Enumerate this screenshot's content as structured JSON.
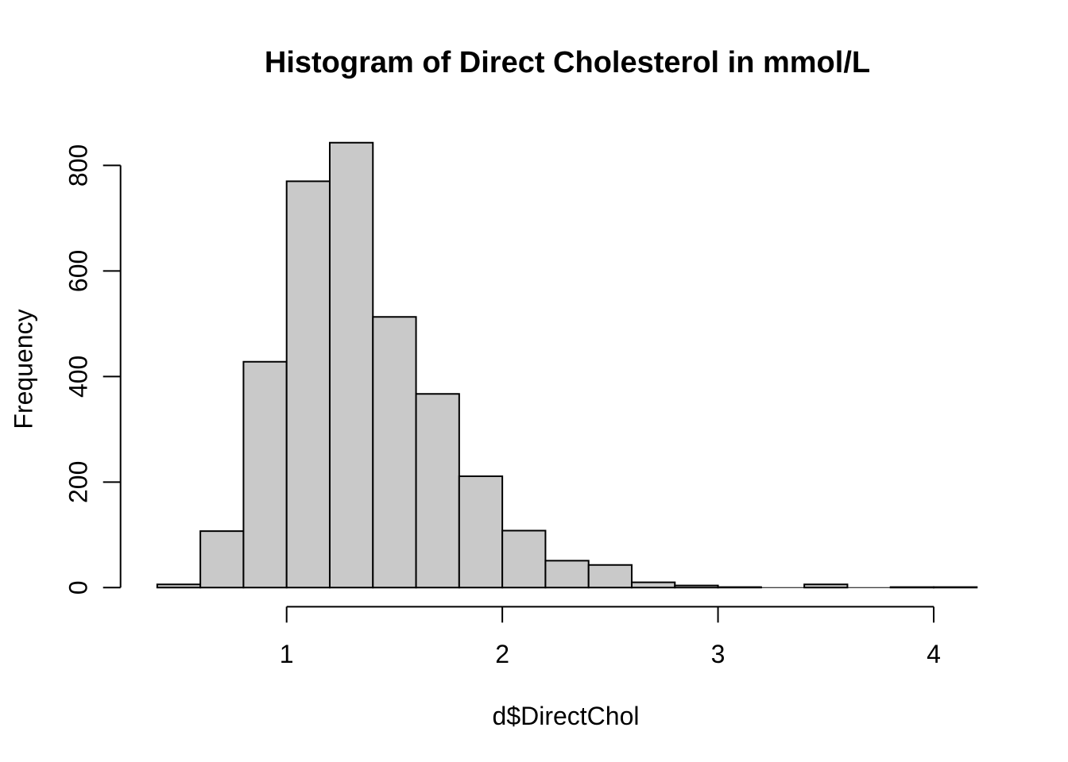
{
  "chart_data": {
    "type": "bar",
    "subtype": "histogram",
    "title": "Histogram of Direct Cholesterol in mmol/L",
    "xlabel": "d$DirectChol",
    "ylabel": "Frequency",
    "bin_start": 0.4,
    "bin_width": 0.2,
    "counts": [
      6,
      107,
      428,
      770,
      843,
      513,
      367,
      211,
      108,
      51,
      43,
      10,
      4,
      1,
      0,
      6,
      0,
      1,
      1
    ],
    "x_ticks": [
      1,
      2,
      3,
      4
    ],
    "y_ticks": [
      0,
      200,
      400,
      600,
      800
    ],
    "xlim": [
      0.4,
      4.2
    ],
    "ylim": [
      0,
      800
    ],
    "grid": false,
    "legend": false,
    "bar_fill": "#c9c9c9",
    "bar_border": "#000000",
    "axis_color": "#000000",
    "background": "#ffffff"
  }
}
